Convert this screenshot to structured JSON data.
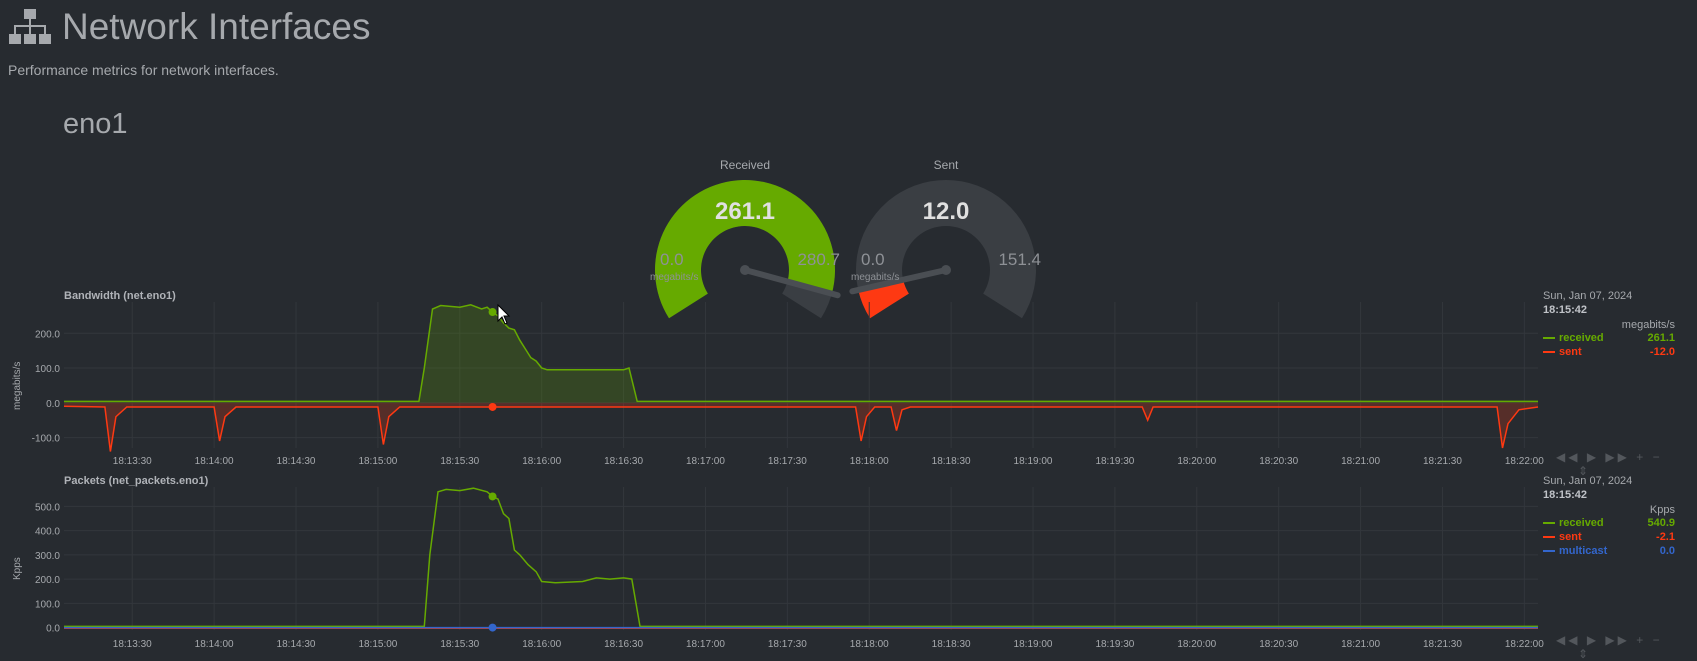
{
  "header": {
    "title": "Network Interfaces",
    "subtitle": "Performance metrics for network interfaces."
  },
  "interface": {
    "name": "eno1"
  },
  "gauges": [
    {
      "label": "Received",
      "value": "261.1",
      "min": "0.0",
      "max": "280.7",
      "unit": "megabits/s",
      "fraction": 0.93,
      "color": "#66aa00"
    },
    {
      "label": "Sent",
      "value": "12.0",
      "min": "0.0",
      "max": "151.4",
      "unit": "megabits/s",
      "fraction": 0.08,
      "color": "#fe3912"
    }
  ],
  "colors": {
    "received": "#66aa00",
    "sent": "#fe3912",
    "multicast": "#3366cc",
    "background": "#272b30"
  },
  "charts": [
    {
      "title": "Bandwidth (net.eno1)",
      "ylabel": "megabits/s",
      "date": "Sun, Jan 07, 2024",
      "time": "18:15:42",
      "units": "megabits/s",
      "legend": [
        {
          "name": "received",
          "value": "261.1",
          "color": "#66aa00"
        },
        {
          "name": "sent",
          "value": "-12.0",
          "color": "#fe3912"
        }
      ],
      "toolbar": [
        "◀◀",
        "▶",
        "▶▶",
        "+",
        "−",
        "⇕"
      ]
    },
    {
      "title": "Packets (net_packets.eno1)",
      "ylabel": "Kpps",
      "date": "Sun, Jan 07, 2024",
      "time": "18:15:42",
      "units": "Kpps",
      "legend": [
        {
          "name": "received",
          "value": "540.9",
          "color": "#66aa00"
        },
        {
          "name": "sent",
          "value": "-2.1",
          "color": "#fe3912"
        },
        {
          "name": "multicast",
          "value": "0.0",
          "color": "#3366cc"
        }
      ],
      "toolbar": [
        "◀◀",
        "▶",
        "▶▶",
        "+",
        "−",
        "⇕"
      ]
    }
  ],
  "chart_data": [
    {
      "type": "area",
      "title": "Bandwidth (net.eno1)",
      "ylabel": "megabits/s",
      "ylim": [
        -130,
        290
      ],
      "yticks": [
        200,
        100,
        0,
        -100
      ],
      "ytick_labels": [
        "200.0",
        "100.0",
        "0.0",
        "-100.0"
      ],
      "x_start": "18:13:05",
      "x_end": "18:22:05",
      "xticks": [
        "18:13:30",
        "18:14:00",
        "18:14:30",
        "18:15:00",
        "18:15:30",
        "18:16:00",
        "18:16:30",
        "18:17:00",
        "18:17:30",
        "18:18:00",
        "18:18:30",
        "18:19:00",
        "18:19:30",
        "18:20:00",
        "18:20:30",
        "18:21:00",
        "18:21:30",
        "18:22:00"
      ],
      "grid": true,
      "legend_position": "right",
      "series": [
        {
          "name": "received",
          "x": [
            "18:13:05",
            "18:15:15",
            "18:15:17",
            "18:15:20",
            "18:15:23",
            "18:15:30",
            "18:15:34",
            "18:15:38",
            "18:15:40",
            "18:15:42",
            "18:15:44",
            "18:15:46",
            "18:15:48",
            "18:15:50",
            "18:15:52",
            "18:15:54",
            "18:15:56",
            "18:15:58",
            "18:16:00",
            "18:16:02",
            "18:16:05",
            "18:16:30",
            "18:16:32",
            "18:16:35",
            "18:22:05"
          ],
          "values": [
            4,
            4,
            100,
            270,
            280,
            275,
            282,
            270,
            275,
            261,
            250,
            230,
            215,
            210,
            180,
            155,
            130,
            120,
            100,
            95,
            95,
            95,
            100,
            4,
            4
          ]
        },
        {
          "name": "sent",
          "x": [
            "18:13:05",
            "18:13:20",
            "18:13:22",
            "18:13:24",
            "18:13:28",
            "18:14:00",
            "18:14:02",
            "18:14:04",
            "18:14:08",
            "18:15:00",
            "18:15:02",
            "18:15:04",
            "18:15:08",
            "18:15:42",
            "18:17:55",
            "18:17:57",
            "18:17:59",
            "18:18:02",
            "18:18:08",
            "18:18:10",
            "18:18:12",
            "18:18:15",
            "18:19:40",
            "18:19:42",
            "18:19:44",
            "18:21:50",
            "18:21:52",
            "18:21:54",
            "18:21:58",
            "18:22:05"
          ],
          "values": [
            -10,
            -12,
            -140,
            -40,
            -12,
            -12,
            -110,
            -40,
            -12,
            -12,
            -120,
            -40,
            -12,
            -12,
            -12,
            -110,
            -40,
            -12,
            -12,
            -80,
            -20,
            -12,
            -12,
            -50,
            -12,
            -12,
            -130,
            -60,
            -20,
            -12
          ]
        }
      ],
      "markers": [
        {
          "series": "received",
          "x": "18:15:42",
          "y": 261.1
        },
        {
          "series": "sent",
          "x": "18:15:42",
          "y": -12.0
        }
      ]
    },
    {
      "type": "line",
      "title": "Packets (net_packets.eno1)",
      "ylabel": "Kpps",
      "ylim": [
        -10,
        580
      ],
      "yticks": [
        500,
        400,
        300,
        200,
        100,
        0
      ],
      "ytick_labels": [
        "500.0",
        "400.0",
        "300.0",
        "200.0",
        "100.0",
        "0.0"
      ],
      "x_start": "18:13:05",
      "x_end": "18:22:05",
      "xticks": [
        "18:13:30",
        "18:14:00",
        "18:14:30",
        "18:15:00",
        "18:15:30",
        "18:16:00",
        "18:16:30",
        "18:17:00",
        "18:17:30",
        "18:18:00",
        "18:18:30",
        "18:19:00",
        "18:19:30",
        "18:20:00",
        "18:20:30",
        "18:21:00",
        "18:21:30",
        "18:22:00"
      ],
      "grid": true,
      "legend_position": "right",
      "series": [
        {
          "name": "received",
          "x": [
            "18:13:05",
            "18:15:17",
            "18:15:19",
            "18:15:22",
            "18:15:25",
            "18:15:30",
            "18:15:35",
            "18:15:40",
            "18:15:42",
            "18:15:44",
            "18:15:46",
            "18:15:48",
            "18:15:50",
            "18:15:52",
            "18:15:55",
            "18:15:58",
            "18:16:00",
            "18:16:05",
            "18:16:15",
            "18:16:20",
            "18:16:25",
            "18:16:30",
            "18:16:33",
            "18:16:36",
            "18:22:05"
          ],
          "values": [
            5,
            5,
            300,
            560,
            570,
            565,
            575,
            560,
            541,
            530,
            470,
            450,
            320,
            300,
            260,
            230,
            190,
            185,
            190,
            205,
            200,
            205,
            200,
            5,
            5
          ]
        },
        {
          "name": "sent",
          "x": [
            "18:13:05",
            "18:22:05"
          ],
          "values": [
            -2,
            -2
          ]
        },
        {
          "name": "multicast",
          "x": [
            "18:13:05",
            "18:22:05"
          ],
          "values": [
            0,
            0
          ]
        }
      ],
      "markers": [
        {
          "series": "received",
          "x": "18:15:42",
          "y": 540.9
        },
        {
          "series": "multicast",
          "x": "18:15:42",
          "y": 0.0
        }
      ]
    }
  ]
}
